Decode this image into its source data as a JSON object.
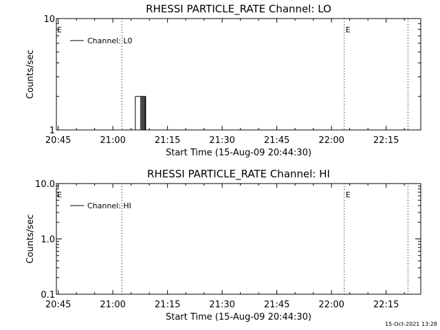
{
  "footer": {
    "timestamp": "15-Oct-2021 13:28"
  },
  "chart_data": [
    {
      "type": "line",
      "title": "RHESSI PARTICLE_RATE Channel: LO",
      "xlabel": "Start Time (15-Aug-09 20:44:30)",
      "ylabel": "Counts/sec",
      "yscale": "log",
      "xlim": [
        "20:44:30",
        "22:24:30"
      ],
      "ylim": [
        1,
        10
      ],
      "x_ticks": [
        "20:45",
        "21:00",
        "21:15",
        "21:30",
        "21:45",
        "22:00",
        "22:15"
      ],
      "y_ticks": [
        "1",
        "10"
      ],
      "legend": {
        "position": "top-left",
        "label": "Channel: L0"
      },
      "markers": [
        {
          "time": "21:02:30",
          "label": ""
        },
        {
          "time": "22:03:30",
          "label": "E"
        },
        {
          "time": "22:21:00",
          "label": ""
        }
      ],
      "start_marker_label": "E",
      "series": [
        {
          "color": "#000000",
          "x": [
            "21:06:00",
            "21:06:10",
            "21:06:30",
            "21:07:30",
            "21:07:40",
            "21:07:50",
            "21:08:10",
            "21:08:20",
            "21:08:40",
            "21:08:50",
            "21:09:00"
          ],
          "y": [
            1,
            2,
            2,
            2,
            1,
            2,
            1,
            2,
            1,
            2,
            1
          ]
        }
      ]
    },
    {
      "type": "line",
      "title": "RHESSI PARTICLE_RATE Channel: HI",
      "xlabel": "Start Time (15-Aug-09 20:44:30)",
      "ylabel": "Counts/sec",
      "yscale": "log",
      "xlim": [
        "20:44:30",
        "22:24:30"
      ],
      "ylim": [
        0.1,
        10
      ],
      "x_ticks": [
        "20:45",
        "21:00",
        "21:15",
        "21:30",
        "21:45",
        "22:00",
        "22:15"
      ],
      "y_ticks": [
        "0.1",
        "1.0",
        "10.0"
      ],
      "legend": {
        "position": "top-left",
        "label": "Channel: HI"
      },
      "markers": [
        {
          "time": "21:02:30",
          "label": ""
        },
        {
          "time": "22:03:30",
          "label": "E"
        },
        {
          "time": "22:21:00",
          "label": ""
        }
      ],
      "start_marker_label": "E",
      "series": []
    }
  ]
}
